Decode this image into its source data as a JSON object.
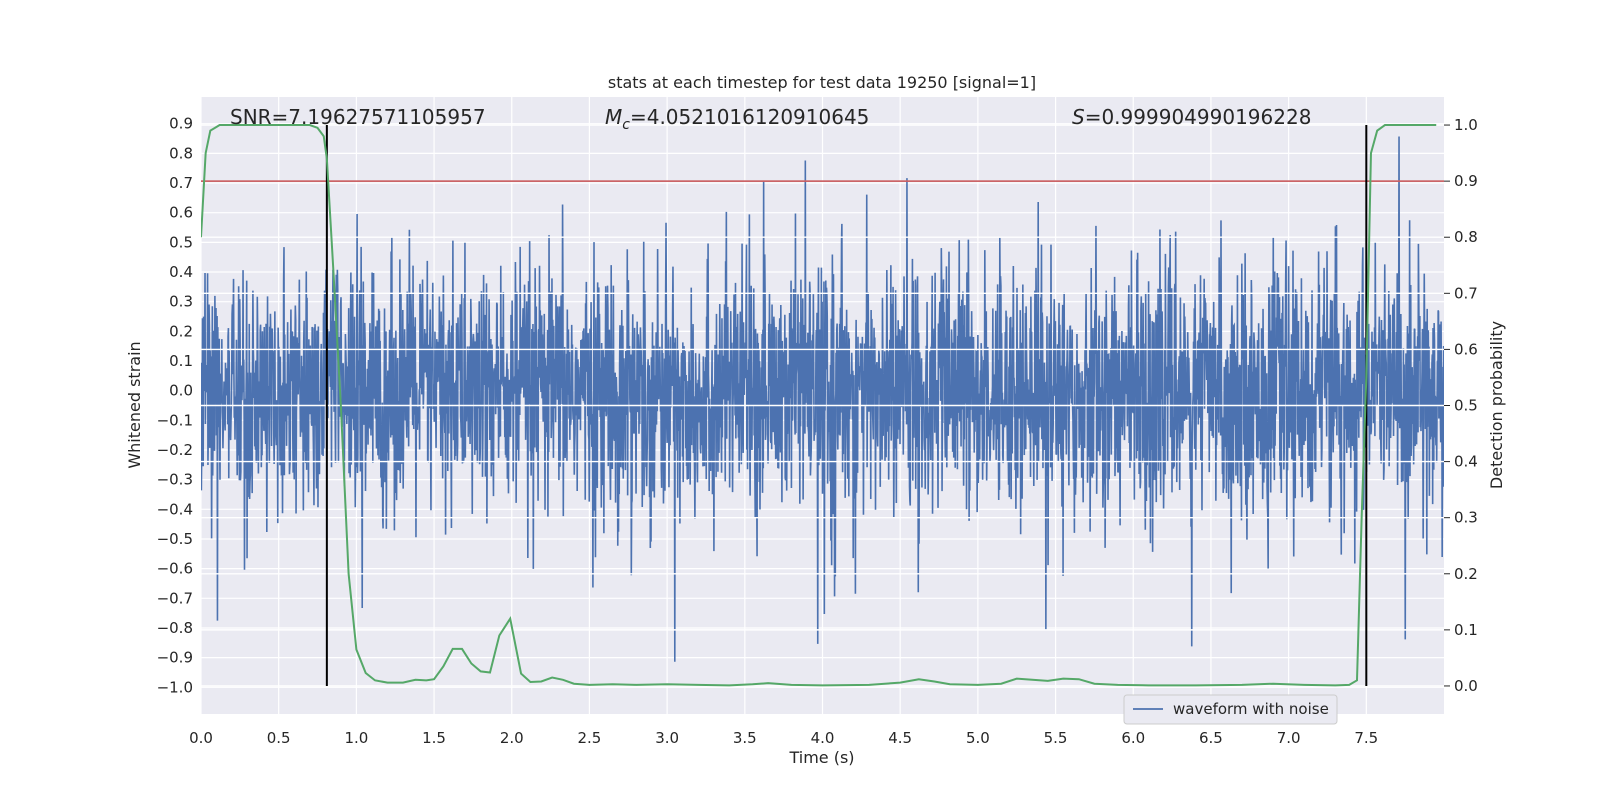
{
  "chart_data": {
    "type": "line",
    "title": "stats at each timestep for test data 19250 [signal=1]",
    "xlabel": "Time (s)",
    "ylabel_left": "Whitened strain",
    "ylabel_right": "Detection probability",
    "xlim": [
      0.0,
      8.0
    ],
    "ylim_left": [
      -1.09,
      0.99
    ],
    "ylim_right": [
      -0.05,
      1.05
    ],
    "x_ticks": [
      "0.0",
      "0.5",
      "1.0",
      "1.5",
      "2.0",
      "2.5",
      "3.0",
      "3.5",
      "4.0",
      "4.5",
      "5.0",
      "5.5",
      "6.0",
      "6.5",
      "7.0",
      "7.5"
    ],
    "x_tick_values": [
      0.0,
      0.5,
      1.0,
      1.5,
      2.0,
      2.5,
      3.0,
      3.5,
      4.0,
      4.5,
      5.0,
      5.5,
      6.0,
      6.5,
      7.0,
      7.5
    ],
    "y_left_ticks": [
      "0.9",
      "0.8",
      "0.7",
      "0.6",
      "0.5",
      "0.4",
      "0.3",
      "0.2",
      "0.1",
      "0.0",
      "−0.1",
      "−0.2",
      "−0.3",
      "−0.4",
      "−0.5",
      "−0.6",
      "−0.7",
      "−0.8",
      "−0.9",
      "−1.0"
    ],
    "y_left_tick_values": [
      0.9,
      0.8,
      0.7,
      0.6,
      0.5,
      0.4,
      0.3,
      0.2,
      0.1,
      0.0,
      -0.1,
      -0.2,
      -0.3,
      -0.4,
      -0.5,
      -0.6,
      -0.7,
      -0.8,
      -0.9,
      -1.0
    ],
    "y_right_ticks": [
      "1.0",
      "0.9",
      "0.8",
      "0.7",
      "0.6",
      "0.5",
      "0.4",
      "0.3",
      "0.2",
      "0.1",
      "0.0"
    ],
    "y_right_tick_values": [
      1.0,
      0.9,
      0.8,
      0.7,
      0.6,
      0.5,
      0.4,
      0.3,
      0.2,
      0.1,
      0.0
    ],
    "annotations": {
      "snr": "SNR=7.19627571105957",
      "mc_symbol": "M",
      "mc_sub": "c",
      "mc_value": "=4.0521016120910645",
      "s_symbol": "S",
      "s_value": "=0.999904990196228"
    },
    "threshold_probability": 0.9,
    "vertical_markers": [
      0.81,
      7.5
    ],
    "legend_label": "waveform with noise",
    "colors": {
      "waveform": "#4c72b0",
      "probability": "#55a868",
      "threshold": "#c44e52",
      "marker": "#000000",
      "axes_bg": "#eaeaf2",
      "grid": "#ffffff"
    },
    "waveform_series": {
      "name": "waveform with noise",
      "x_range": [
        0.0,
        8.0
      ],
      "typical_envelope": [
        -0.45,
        0.5
      ],
      "extreme_range": [
        -1.0,
        0.9
      ]
    },
    "probability_series": {
      "name": "detection probability",
      "points": [
        [
          0.0,
          0.8
        ],
        [
          0.03,
          0.95
        ],
        [
          0.06,
          0.99
        ],
        [
          0.12,
          1.0
        ],
        [
          0.3,
          1.0
        ],
        [
          0.5,
          1.0
        ],
        [
          0.7,
          1.0
        ],
        [
          0.75,
          0.995
        ],
        [
          0.79,
          0.98
        ],
        [
          0.81,
          0.94
        ],
        [
          0.85,
          0.75
        ],
        [
          0.9,
          0.5
        ],
        [
          0.95,
          0.2
        ],
        [
          1.0,
          0.065
        ],
        [
          1.06,
          0.023
        ],
        [
          1.12,
          0.01
        ],
        [
          1.2,
          0.006
        ],
        [
          1.3,
          0.006
        ],
        [
          1.38,
          0.011
        ],
        [
          1.45,
          0.01
        ],
        [
          1.5,
          0.012
        ],
        [
          1.56,
          0.035
        ],
        [
          1.62,
          0.066
        ],
        [
          1.68,
          0.066
        ],
        [
          1.74,
          0.04
        ],
        [
          1.8,
          0.026
        ],
        [
          1.86,
          0.024
        ],
        [
          1.92,
          0.09
        ],
        [
          1.99,
          0.12
        ],
        [
          2.06,
          0.022
        ],
        [
          2.12,
          0.007
        ],
        [
          2.19,
          0.008
        ],
        [
          2.26,
          0.015
        ],
        [
          2.33,
          0.011
        ],
        [
          2.4,
          0.004
        ],
        [
          2.5,
          0.002
        ],
        [
          2.65,
          0.003
        ],
        [
          2.8,
          0.002
        ],
        [
          3.0,
          0.003
        ],
        [
          3.2,
          0.002
        ],
        [
          3.4,
          0.001
        ],
        [
          3.55,
          0.003
        ],
        [
          3.65,
          0.005
        ],
        [
          3.8,
          0.002
        ],
        [
          4.0,
          0.001
        ],
        [
          4.3,
          0.002
        ],
        [
          4.5,
          0.006
        ],
        [
          4.62,
          0.012
        ],
        [
          4.72,
          0.008
        ],
        [
          4.82,
          0.003
        ],
        [
          5.0,
          0.002
        ],
        [
          5.15,
          0.004
        ],
        [
          5.25,
          0.013
        ],
        [
          5.35,
          0.011
        ],
        [
          5.45,
          0.009
        ],
        [
          5.55,
          0.013
        ],
        [
          5.65,
          0.012
        ],
        [
          5.75,
          0.004
        ],
        [
          5.9,
          0.002
        ],
        [
          6.1,
          0.001
        ],
        [
          6.4,
          0.001
        ],
        [
          6.7,
          0.002
        ],
        [
          6.9,
          0.004
        ],
        [
          7.1,
          0.002
        ],
        [
          7.3,
          0.001
        ],
        [
          7.39,
          0.002
        ],
        [
          7.44,
          0.01
        ],
        [
          7.47,
          0.3
        ],
        [
          7.5,
          0.55
        ],
        [
          7.53,
          0.95
        ],
        [
          7.57,
          0.99
        ],
        [
          7.62,
          1.0
        ],
        [
          7.8,
          1.0
        ],
        [
          7.95,
          1.0
        ]
      ]
    }
  }
}
